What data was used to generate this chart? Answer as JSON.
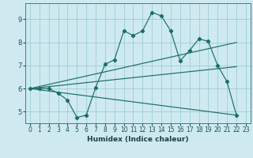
{
  "xlabel": "Humidex (Indice chaleur)",
  "bg_color": "#ceeaf0",
  "grid_color": "#9ecdd6",
  "line_color": "#1a6e6a",
  "xlim": [
    -0.5,
    23.5
  ],
  "ylim": [
    4.5,
    9.7
  ],
  "xtick_labels": [
    "0",
    "1",
    "2",
    "3",
    "4",
    "5",
    "6",
    "7",
    "8",
    "9",
    "10",
    "11",
    "12",
    "13",
    "14",
    "15",
    "16",
    "17",
    "18",
    "19",
    "20",
    "21",
    "22",
    "23"
  ],
  "xticks": [
    0,
    1,
    2,
    3,
    4,
    5,
    6,
    7,
    8,
    9,
    10,
    11,
    12,
    13,
    14,
    15,
    16,
    17,
    18,
    19,
    20,
    21,
    22,
    23
  ],
  "yticks": [
    5,
    6,
    7,
    8,
    9
  ],
  "series1_x": [
    0,
    1,
    2,
    3,
    4,
    5,
    6,
    7,
    8,
    9,
    10,
    11,
    12,
    13,
    14,
    15,
    16,
    17,
    18,
    19,
    20,
    21,
    22
  ],
  "series1_y": [
    6.0,
    6.0,
    6.0,
    5.8,
    5.5,
    4.75,
    4.85,
    6.05,
    7.05,
    7.25,
    8.5,
    8.3,
    8.5,
    9.3,
    9.15,
    8.5,
    7.2,
    7.65,
    8.15,
    8.05,
    7.0,
    6.3,
    4.85
  ],
  "series2_x": [
    0,
    22
  ],
  "series2_y": [
    6.0,
    8.0
  ],
  "series3_x": [
    0,
    22
  ],
  "series3_y": [
    6.0,
    6.95
  ],
  "series4_x": [
    0,
    22
  ],
  "series4_y": [
    6.0,
    4.85
  ]
}
